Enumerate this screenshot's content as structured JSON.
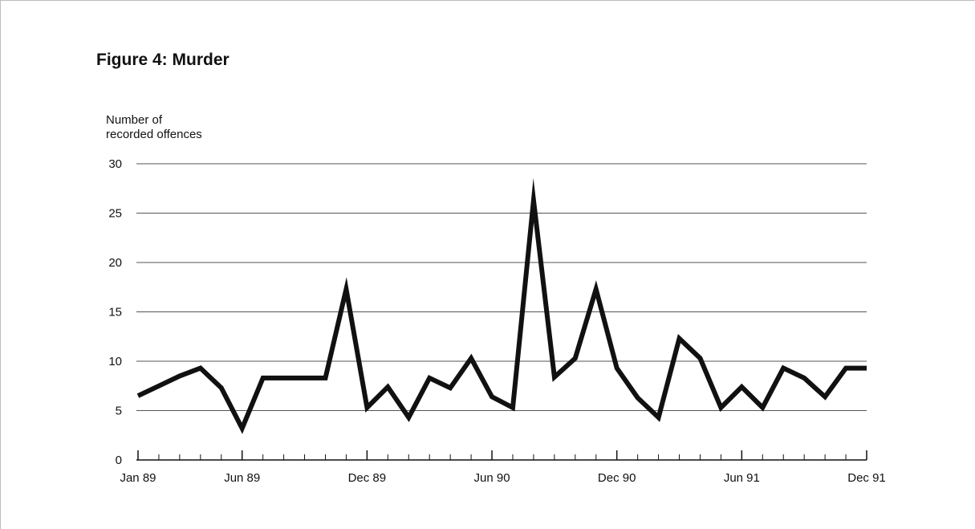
{
  "figure": {
    "title": "Figure 4:  Murder"
  },
  "chart_data": {
    "type": "line",
    "title": "Figure 4:  Murder",
    "ylabel_lines": [
      "Number of",
      "recorded offences"
    ],
    "xlabel": "",
    "ylim": [
      0,
      30
    ],
    "yticks": [
      0,
      5,
      10,
      15,
      20,
      25,
      30
    ],
    "xlim": [
      "Jan 89",
      "Dec 91"
    ],
    "x_tick_labels": [
      "Jan 89",
      "Jun 89",
      "Dec 89",
      "Jun 90",
      "Dec 90",
      "Jun 91",
      "Dec 91"
    ],
    "grid": true,
    "series": [
      {
        "x": [
          "Jan 89",
          "Feb 89",
          "Mar 89",
          "Apr 89",
          "May 89",
          "Jun 89",
          "Jul 89",
          "Aug 89",
          "Sep 89",
          "Oct 89",
          "Nov 89",
          "Dec 89",
          "Jan 90",
          "Feb 90",
          "Mar 90",
          "Apr 90",
          "May 90",
          "Jun 90",
          "Jul 90",
          "Aug 90",
          "Sep 90",
          "Oct 90",
          "Nov 90",
          "Dec 90",
          "Jan 91",
          "Feb 91",
          "Mar 91",
          "Apr 91",
          "May 91",
          "Jun 91",
          "Jul 91",
          "Aug 91",
          "Sep 91",
          "Oct 91",
          "Nov 91",
          "Dec 91"
        ],
        "values": [
          6.5,
          7.5,
          8.5,
          9.3,
          7.3,
          3.2,
          8.3,
          8.3,
          8.3,
          8.3,
          17.3,
          5.3,
          7.4,
          4.3,
          8.3,
          7.3,
          10.3,
          6.4,
          5.3,
          26.3,
          8.4,
          10.3,
          17.3,
          9.3,
          6.3,
          4.3,
          12.3,
          10.3,
          5.3,
          7.4,
          5.3,
          9.3,
          8.3,
          6.4,
          9.3,
          9.3
        ],
        "color": "#111111"
      }
    ]
  }
}
